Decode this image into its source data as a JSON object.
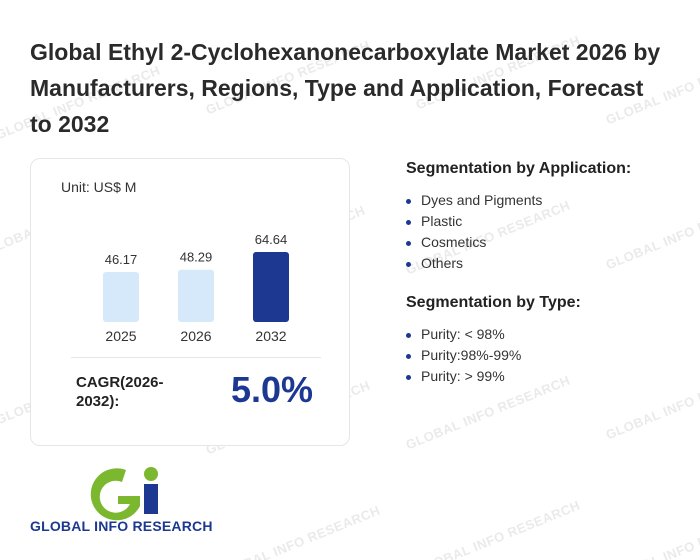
{
  "title": "Global Ethyl 2-Cyclohexanonecarboxylate Market 2026 by Manufacturers, Regions, Type and Application, Forecast to 2032",
  "unit": "Unit: US$ M",
  "chart_data": {
    "type": "bar",
    "categories": [
      "2025",
      "2026",
      "2032"
    ],
    "values": [
      46.17,
      48.29,
      64.64
    ],
    "value_labels": [
      "46.17",
      "48.29",
      "64.64"
    ],
    "colors": [
      "#d6e9fb",
      "#d6e9fb",
      "#1c3891"
    ]
  },
  "cagr": {
    "label": "CAGR(2026-2032):",
    "value": "5.0%"
  },
  "application": {
    "title": "Segmentation by Application:",
    "items": [
      "Dyes and Pigments",
      "Plastic",
      "Cosmetics",
      "Others"
    ]
  },
  "type_seg": {
    "title": "Segmentation by Type:",
    "items": [
      "Purity: < 98%",
      "Purity:98%-99%",
      "Purity: > 99%"
    ]
  },
  "logo": {
    "text": "GLOBAL INFO RESEARCH"
  },
  "watermark": {
    "text": "GLOBAL INFO RESEARCH"
  },
  "colors": {
    "accent": "#1c3891",
    "light_bar": "#d6e9fb",
    "logo_green": "#7cb82f"
  }
}
